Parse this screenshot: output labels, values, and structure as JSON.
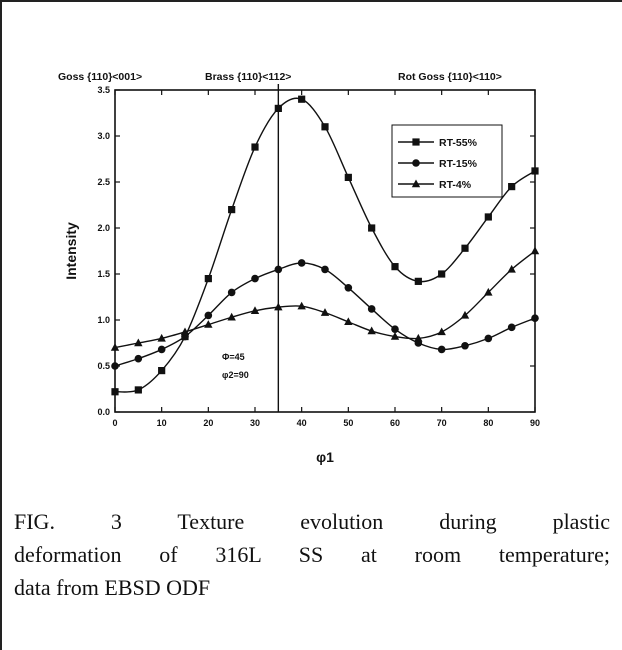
{
  "chart_data": {
    "type": "line",
    "xlabel": "φ1",
    "ylabel": "Intensity",
    "xlim": [
      0,
      90
    ],
    "ylim": [
      0,
      3.5
    ],
    "xticks": [
      "0",
      "10",
      "20",
      "30",
      "40",
      "50",
      "60",
      "70",
      "80",
      "90"
    ],
    "yticks": [
      "0.0",
      "0.5",
      "1.0",
      "1.5",
      "2.0",
      "2.5",
      "3.0",
      "3.5"
    ],
    "legend_position": "top-right",
    "vertical_line_x": 35,
    "top_annotations": [
      "Goss {110}<001>",
      "Brass {110}<112>",
      "Rot Goss {110}<110>"
    ],
    "inset_annotations": [
      "Φ=45",
      "φ2=90"
    ],
    "series": [
      {
        "name": "RT-55%",
        "marker": "square",
        "x": [
          0,
          5,
          10,
          15,
          20,
          25,
          30,
          35,
          40,
          45,
          50,
          55,
          60,
          65,
          70,
          75,
          80,
          85,
          90
        ],
        "y": [
          0.22,
          0.24,
          0.45,
          0.82,
          1.45,
          2.2,
          2.88,
          3.3,
          3.4,
          3.1,
          2.55,
          2.0,
          1.58,
          1.42,
          1.5,
          1.78,
          2.12,
          2.45,
          2.62
        ]
      },
      {
        "name": "RT-15%",
        "marker": "circle",
        "x": [
          0,
          5,
          10,
          15,
          20,
          25,
          30,
          35,
          40,
          45,
          50,
          55,
          60,
          65,
          70,
          75,
          80,
          85,
          90
        ],
        "y": [
          0.5,
          0.58,
          0.68,
          0.82,
          1.05,
          1.3,
          1.45,
          1.55,
          1.62,
          1.55,
          1.35,
          1.12,
          0.9,
          0.75,
          0.68,
          0.72,
          0.8,
          0.92,
          1.02
        ]
      },
      {
        "name": "RT-4%",
        "marker": "triangle",
        "x": [
          0,
          5,
          10,
          15,
          20,
          25,
          30,
          35,
          40,
          45,
          50,
          55,
          60,
          65,
          70,
          75,
          80,
          85,
          90
        ],
        "y": [
          0.7,
          0.75,
          0.8,
          0.87,
          0.95,
          1.03,
          1.1,
          1.14,
          1.15,
          1.08,
          0.98,
          0.88,
          0.82,
          0.8,
          0.87,
          1.05,
          1.3,
          1.55,
          1.75
        ]
      }
    ]
  },
  "caption": {
    "line1": "FIG. 3      Texture evolution during plastic",
    "line2": "deformation of 316L SS at room temperature;",
    "line3": "data from EBSD ODF"
  }
}
